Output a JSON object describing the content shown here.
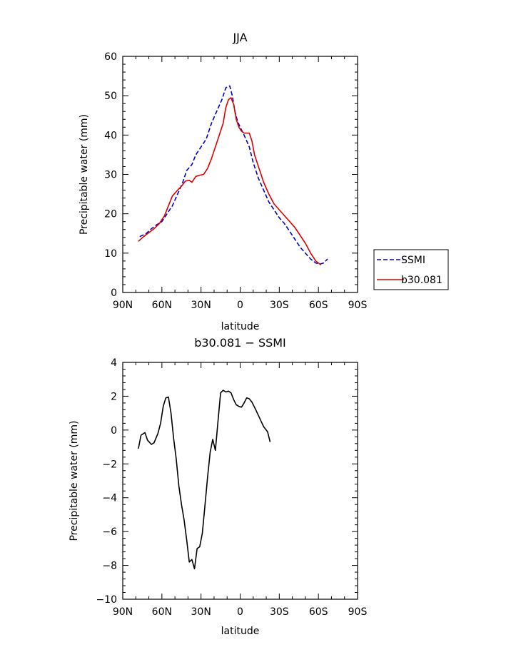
{
  "chart_data": [
    {
      "type": "line",
      "title": "JJA",
      "xlabel": "latitude",
      "ylabel": "Precipitable water (mm)",
      "xlim": [
        90,
        -90
      ],
      "ylim": [
        0,
        60
      ],
      "x_ticks": [
        90,
        60,
        30,
        0,
        -30,
        -60,
        -90
      ],
      "x_tick_labels": [
        "90N",
        "60N",
        "30N",
        "0",
        "30S",
        "60S",
        "90S"
      ],
      "y_ticks": [
        0,
        10,
        20,
        30,
        40,
        50,
        60
      ],
      "y_tick_labels": [
        "0",
        "10",
        "20",
        "30",
        "40",
        "50",
        "60"
      ],
      "legend_position": "right",
      "series": [
        {
          "name": "SSMI",
          "color": "#0000cc",
          "dash": "dashed",
          "points": [
            [
              77,
              14.2
            ],
            [
              72,
              15
            ],
            [
              68,
              16.2
            ],
            [
              64,
              17.2
            ],
            [
              60,
              18
            ],
            [
              56,
              20
            ],
            [
              52,
              22
            ],
            [
              48,
              25
            ],
            [
              44,
              28
            ],
            [
              41,
              31
            ],
            [
              37,
              32.5
            ],
            [
              34,
              35
            ],
            [
              30,
              37
            ],
            [
              26,
              39
            ],
            [
              22,
              43
            ],
            [
              18,
              46
            ],
            [
              14,
              49
            ],
            [
              11,
              52
            ],
            [
              8,
              52.5
            ],
            [
              6,
              50
            ],
            [
              4,
              46
            ],
            [
              2,
              43.5
            ],
            [
              0,
              42
            ],
            [
              -3,
              40
            ],
            [
              -7,
              37
            ],
            [
              -10,
              33
            ],
            [
              -14,
              29
            ],
            [
              -18,
              26
            ],
            [
              -22,
              23
            ],
            [
              -26,
              21
            ],
            [
              -30,
              19
            ],
            [
              -34,
              17.5
            ],
            [
              -38,
              15.5
            ],
            [
              -42,
              13.5
            ],
            [
              -46,
              11.5
            ],
            [
              -50,
              10
            ],
            [
              -54,
              8.5
            ],
            [
              -58,
              7.5
            ],
            [
              -61,
              7.2
            ],
            [
              -64,
              7.5
            ],
            [
              -67,
              8.5
            ]
          ]
        },
        {
          "name": "b30.081",
          "color": "#dd0000",
          "dash": "solid",
          "points": [
            [
              78,
              13
            ],
            [
              74,
              14.2
            ],
            [
              70,
              15.2
            ],
            [
              66,
              16.2
            ],
            [
              62,
              17.5
            ],
            [
              58,
              19.5
            ],
            [
              55,
              22
            ],
            [
              52,
              24.5
            ],
            [
              48,
              26
            ],
            [
              45,
              27
            ],
            [
              42,
              28.3
            ],
            [
              39,
              28.5
            ],
            [
              37,
              28
            ],
            [
              34,
              29.5
            ],
            [
              31,
              29.8
            ],
            [
              28,
              30
            ],
            [
              25,
              31.5
            ],
            [
              22,
              34
            ],
            [
              19,
              37
            ],
            [
              16,
              40
            ],
            [
              13,
              43
            ],
            [
              11,
              47
            ],
            [
              9,
              49
            ],
            [
              7,
              49.5
            ],
            [
              5,
              47.8
            ],
            [
              3,
              44
            ],
            [
              1,
              42
            ],
            [
              -1,
              41
            ],
            [
              -3,
              40.5
            ],
            [
              -5,
              40.5
            ],
            [
              -7,
              40.5
            ],
            [
              -9,
              38.5
            ],
            [
              -11,
              35
            ],
            [
              -14,
              32
            ],
            [
              -18,
              28
            ],
            [
              -22,
              25
            ],
            [
              -26,
              22.5
            ],
            [
              -30,
              21
            ],
            [
              -34,
              19.5
            ],
            [
              -38,
              18
            ],
            [
              -42,
              16.5
            ],
            [
              -46,
              14.5
            ],
            [
              -50,
              12.5
            ],
            [
              -54,
              10
            ],
            [
              -58,
              8
            ],
            [
              -62,
              7
            ]
          ]
        }
      ]
    },
    {
      "type": "line",
      "title": "b30.081 − SSMI",
      "xlabel": "latitude",
      "ylabel": "Precipitable water (mm)",
      "xlim": [
        90,
        -90
      ],
      "ylim": [
        -10,
        4
      ],
      "x_ticks": [
        90,
        60,
        30,
        0,
        -30,
        -60,
        -90
      ],
      "x_tick_labels": [
        "90N",
        "60N",
        "30N",
        "0",
        "30S",
        "60S",
        "90S"
      ],
      "y_ticks": [
        -10,
        -8,
        -6,
        -4,
        -2,
        0,
        2,
        4
      ],
      "y_tick_labels": [
        "−10",
        "−8",
        "−6",
        "−4",
        "−2",
        "0",
        "2",
        "4"
      ],
      "series": [
        {
          "color": "#000000",
          "dash": "solid",
          "points": [
            [
              78,
              -1.1
            ],
            [
              76,
              -0.3
            ],
            [
              73,
              -0.15
            ],
            [
              71,
              -0.6
            ],
            [
              68,
              -0.85
            ],
            [
              66,
              -0.75
            ],
            [
              63,
              -0.2
            ],
            [
              61,
              0.4
            ],
            [
              59,
              1.4
            ],
            [
              57,
              1.9
            ],
            [
              55,
              1.95
            ],
            [
              53,
              1
            ],
            [
              51,
              -0.5
            ],
            [
              49,
              -1.7
            ],
            [
              47,
              -3.3
            ],
            [
              45,
              -4.4
            ],
            [
              43,
              -5.3
            ],
            [
              41,
              -6.5
            ],
            [
              39,
              -7.8
            ],
            [
              37,
              -7.65
            ],
            [
              35,
              -8.2
            ],
            [
              33,
              -7
            ],
            [
              31,
              -6.9
            ],
            [
              29,
              -6.1
            ],
            [
              27,
              -4.5
            ],
            [
              25,
              -2.8
            ],
            [
              23,
              -1.3
            ],
            [
              21,
              -0.55
            ],
            [
              19,
              -1.2
            ],
            [
              17,
              0.5
            ],
            [
              15,
              2.2
            ],
            [
              13,
              2.35
            ],
            [
              11,
              2.25
            ],
            [
              9,
              2.3
            ],
            [
              7,
              2.2
            ],
            [
              5,
              1.8
            ],
            [
              3,
              1.5
            ],
            [
              1,
              1.4
            ],
            [
              -1,
              1.35
            ],
            [
              -3,
              1.6
            ],
            [
              -5,
              1.9
            ],
            [
              -7,
              1.85
            ],
            [
              -9,
              1.65
            ],
            [
              -12,
              1.2
            ],
            [
              -15,
              0.7
            ],
            [
              -18,
              0.2
            ],
            [
              -21,
              -0.1
            ],
            [
              -23,
              -0.7
            ]
          ]
        }
      ]
    }
  ]
}
